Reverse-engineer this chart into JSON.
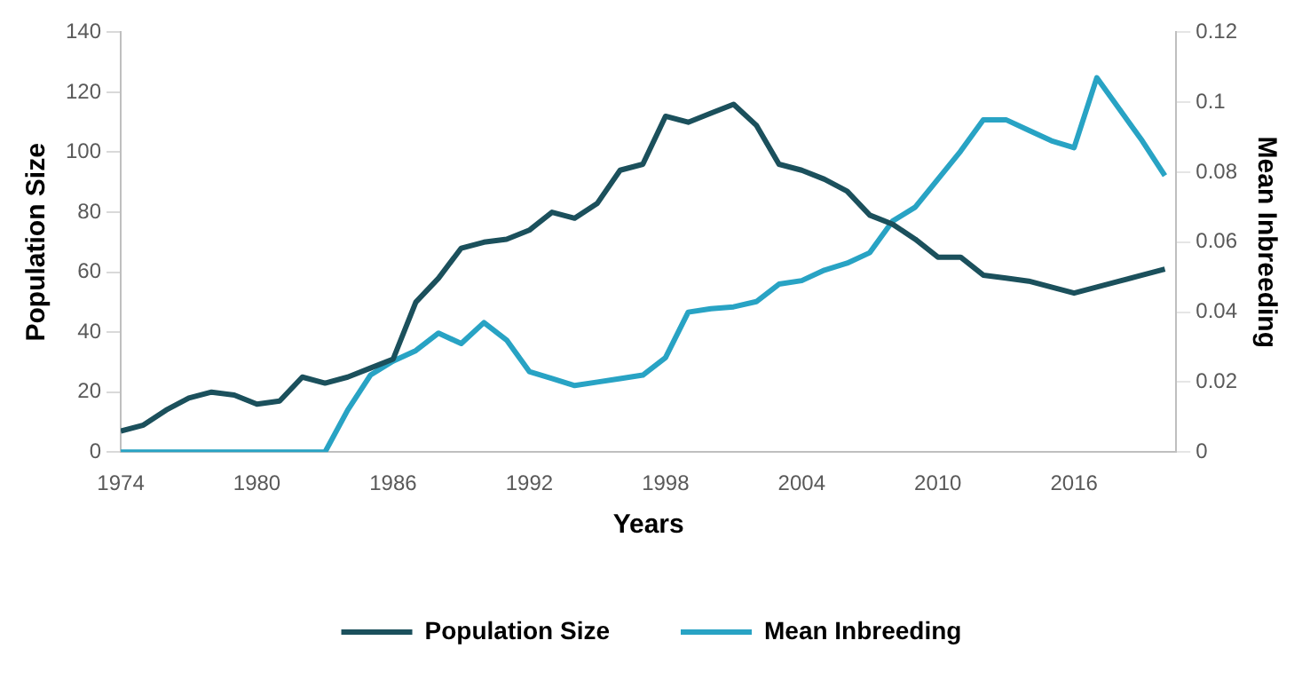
{
  "chart_data": {
    "type": "line",
    "xlabel": "Years",
    "ylabel": "Population Size",
    "y2label": "Mean Inbreeding",
    "x": [
      1974,
      1975,
      1976,
      1977,
      1978,
      1979,
      1980,
      1981,
      1982,
      1983,
      1984,
      1985,
      1986,
      1987,
      1988,
      1989,
      1990,
      1991,
      1992,
      1993,
      1994,
      1995,
      1996,
      1997,
      1998,
      1999,
      2000,
      2001,
      2002,
      2003,
      2004,
      2005,
      2006,
      2007,
      2008,
      2009,
      2010,
      2011,
      2012,
      2013,
      2014,
      2015,
      2016,
      2017,
      2018,
      2019,
      2020
    ],
    "series": [
      {
        "name": "Population Size",
        "color": "#1b505c",
        "values": [
          7,
          9,
          14,
          18,
          20,
          19,
          16,
          17,
          25,
          23,
          25,
          28,
          31,
          50,
          58,
          68,
          70,
          71,
          74,
          80,
          78,
          83,
          94,
          96,
          112,
          110,
          113,
          116,
          109,
          96,
          94,
          91,
          87,
          79,
          76,
          71,
          65,
          65,
          59,
          58,
          57,
          55,
          53,
          55,
          57,
          59,
          61
        ]
      },
      {
        "name": "Mean Inbreeding",
        "color": "#28a3c4",
        "axis": "y2",
        "values": [
          0,
          0,
          0,
          0,
          0,
          0,
          0,
          0,
          0,
          0,
          0.012,
          0.022,
          0.026,
          0.029,
          0.034,
          0.031,
          0.037,
          0.032,
          0.023,
          0.021,
          0.019,
          0.02,
          0.021,
          0.022,
          0.027,
          0.04,
          0.041,
          0.0415,
          0.043,
          0.048,
          0.049,
          0.052,
          0.054,
          0.057,
          0.066,
          0.07,
          0.078,
          0.086,
          0.095,
          0.095,
          0.092,
          0.089,
          0.087,
          0.107,
          0.098,
          0.089,
          0.079
        ]
      }
    ],
    "xlim": [
      1974,
      2020.5
    ],
    "xticks": [
      1974,
      1980,
      1986,
      1992,
      1998,
      2004,
      2010,
      2016
    ],
    "ylim": [
      0,
      140
    ],
    "yticks": [
      0,
      20,
      40,
      60,
      80,
      100,
      120,
      140
    ],
    "y2lim": [
      0,
      0.12
    ],
    "y2ticks": [
      0,
      0.02,
      0.04,
      0.06,
      0.08,
      0.1,
      0.12
    ],
    "grid": false,
    "legend": "bottom",
    "marker": "none",
    "line_style": "solid"
  }
}
